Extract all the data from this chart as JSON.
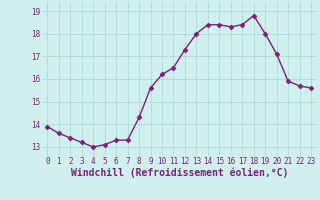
{
  "x": [
    0,
    1,
    2,
    3,
    4,
    5,
    6,
    7,
    8,
    9,
    10,
    11,
    12,
    13,
    14,
    15,
    16,
    17,
    18,
    19,
    20,
    21,
    22,
    23
  ],
  "y": [
    13.9,
    13.6,
    13.4,
    13.2,
    13.0,
    13.1,
    13.3,
    13.3,
    14.3,
    15.6,
    16.2,
    16.5,
    17.3,
    18.0,
    18.4,
    18.4,
    18.3,
    18.4,
    18.8,
    18.0,
    17.1,
    15.9,
    15.7,
    15.6
  ],
  "line_color": "#7B1F7B",
  "marker": "D",
  "marker_size": 2.5,
  "bg_color": "#d0f0ee",
  "grid_color": "#aadada",
  "xlabel": "Windchill (Refroidissement éolien,°C)",
  "xlabel_color": "#7B1F7B",
  "ylim": [
    12.6,
    19.4
  ],
  "xlim": [
    -0.5,
    23.5
  ],
  "yticks": [
    13,
    14,
    15,
    16,
    17,
    18,
    19
  ],
  "xticks": [
    0,
    1,
    2,
    3,
    4,
    5,
    6,
    7,
    8,
    9,
    10,
    11,
    12,
    13,
    14,
    15,
    16,
    17,
    18,
    19,
    20,
    21,
    22,
    23
  ],
  "tick_fontsize": 5.5,
  "xlabel_fontsize": 7.0,
  "line_width": 1.0
}
